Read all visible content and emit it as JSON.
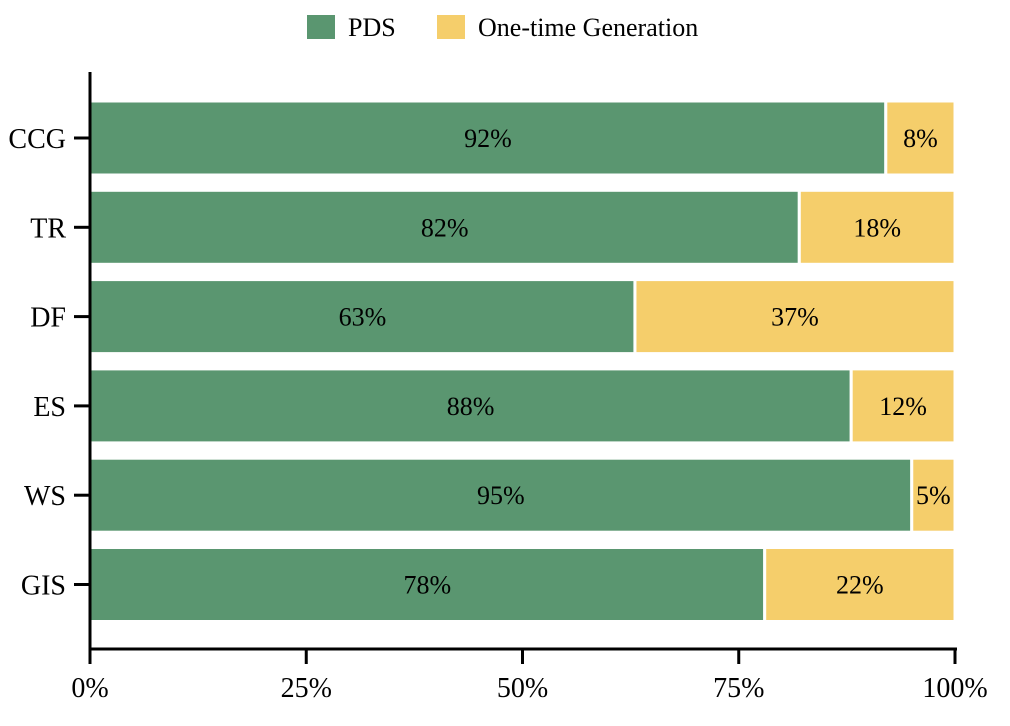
{
  "colors": {
    "pds": "#5a9670",
    "onetime": "#f5ce6b",
    "axis": "#000000",
    "background": "#ffffff"
  },
  "legend": {
    "items": [
      {
        "label": "PDS",
        "color": "#5a9670"
      },
      {
        "label": "One-time Generation",
        "color": "#f5ce6b"
      }
    ],
    "position": "top-center"
  },
  "chart_data": {
    "type": "bar",
    "orientation": "horizontal",
    "stacked": true,
    "categories": [
      "CCG",
      "TR",
      "DF",
      "ES",
      "WS",
      "GIS"
    ],
    "series": [
      {
        "name": "PDS",
        "values": [
          92,
          82,
          63,
          88,
          95,
          78
        ],
        "labels": [
          "92%",
          "82%",
          "63%",
          "88%",
          "95%",
          "78%"
        ]
      },
      {
        "name": "One-time Generation",
        "values": [
          8,
          18,
          37,
          12,
          5,
          22
        ],
        "labels": [
          "8%",
          "18%",
          "37%",
          "12%",
          "5%",
          "22%"
        ]
      }
    ],
    "xlim": [
      0,
      100
    ],
    "x_ticks": [
      "0%",
      "25%",
      "50%",
      "75%",
      "100%"
    ],
    "x_tick_values": [
      0,
      25,
      50,
      75,
      100
    ],
    "title": "",
    "xlabel": "",
    "ylabel": "",
    "grid": false
  }
}
